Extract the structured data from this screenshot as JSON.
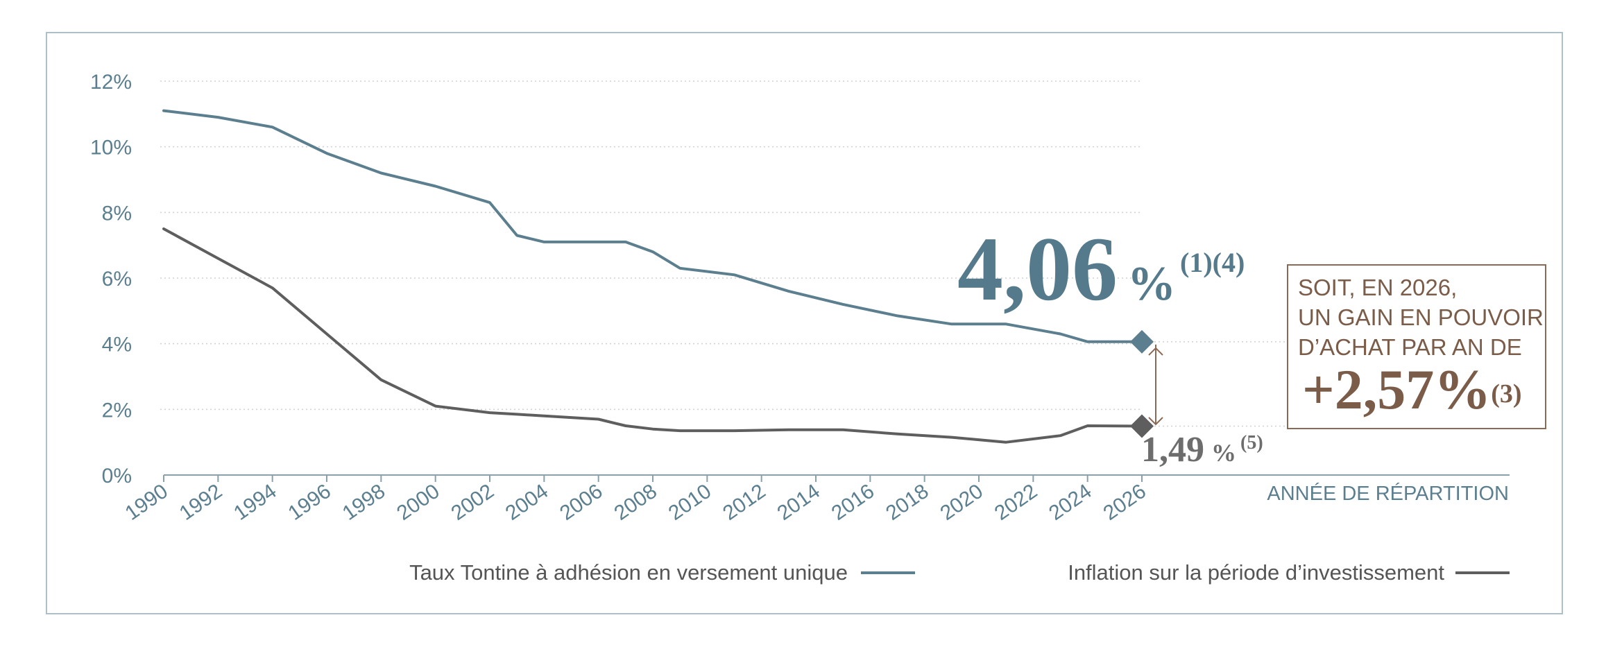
{
  "chart_data": {
    "type": "line",
    "x": [
      1990,
      1992,
      1994,
      1996,
      1998,
      2000,
      2002,
      2003,
      2004,
      2006,
      2007,
      2008,
      2009,
      2011,
      2013,
      2015,
      2017,
      2019,
      2021,
      2023,
      2024,
      2026
    ],
    "series": [
      {
        "name": "Taux Tontine à adhésion en versement unique",
        "values": [
          11.1,
          10.9,
          10.6,
          9.8,
          9.2,
          8.8,
          8.3,
          7.3,
          7.1,
          7.1,
          7.1,
          6.8,
          6.3,
          6.1,
          5.6,
          5.2,
          4.85,
          4.6,
          4.6,
          4.3,
          4.06,
          4.06
        ],
        "color": "#5b7f8f"
      },
      {
        "name": "Inflation sur la période d’investissement",
        "values": [
          7.5,
          6.6,
          5.7,
          4.3,
          2.9,
          2.1,
          1.9,
          1.85,
          1.8,
          1.7,
          1.5,
          1.4,
          1.35,
          1.35,
          1.38,
          1.38,
          1.25,
          1.15,
          1.0,
          1.2,
          1.5,
          1.49
        ],
        "color": "#5e5e5e"
      }
    ],
    "y_ticks": [
      "12%",
      "10%",
      "8%",
      "6%",
      "4%",
      "2%",
      "0%"
    ],
    "x_ticks": [
      "1990",
      "1992",
      "1994",
      "1996",
      "1998",
      "2000",
      "2002",
      "2004",
      "2006",
      "2008",
      "2010",
      "2012",
      "2014",
      "2016",
      "2018",
      "2020",
      "2022",
      "2024",
      "2026"
    ],
    "xlabel": "ANNÉE DE RÉPARTITION",
    "ylim": [
      0,
      12
    ],
    "xlim": [
      1990,
      2026
    ],
    "grid": true,
    "legend_position": "bottom",
    "annotations": {
      "main_value": "4,06",
      "main_unit": "%",
      "main_notes": "(1)(4)",
      "inflation_value": "1,49",
      "inflation_unit": "%",
      "inflation_notes": "(5)",
      "gain_line1": "SOIT, EN 2026,",
      "gain_line2": "UN GAIN EN POUVOIR",
      "gain_line3": "D’ACHAT PAR AN DE",
      "gain_value": "+2,57%",
      "gain_notes": "(3)"
    },
    "colors": {
      "tontine": "#5b7f8f",
      "inflation": "#5e5e5e",
      "gain": "#7a5c48",
      "grid": "#d0d0d0"
    }
  }
}
